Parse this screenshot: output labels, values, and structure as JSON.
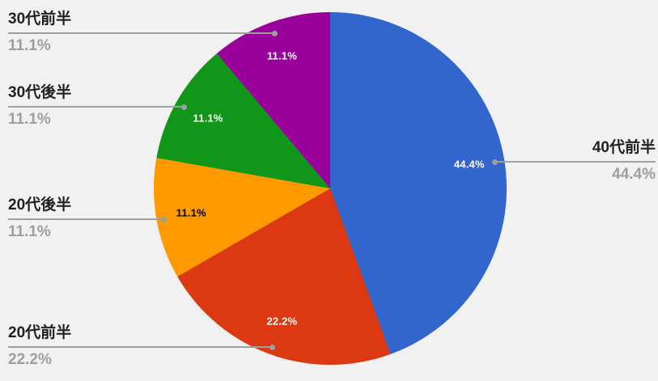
{
  "chart_data": {
    "type": "pie",
    "title": "",
    "direction": "clockwise",
    "start_angle_deg": 0,
    "background_color": "#f1f1f2",
    "callout_name_color": "#212121",
    "callout_pct_color": "#9e9e9e",
    "leader_line_color": "#9e9e9e",
    "slices": [
      {
        "label": "40代前半",
        "value": 44.4,
        "pct_label": "44.4%",
        "color": "#3366cc",
        "pct_text_color": "#ffffff"
      },
      {
        "label": "20代前半",
        "value": 22.2,
        "pct_label": "22.2%",
        "color": "#dc3912",
        "pct_text_color": "#ffffff"
      },
      {
        "label": "20代後半",
        "value": 11.1,
        "pct_label": "11.1%",
        "color": "#ff9900",
        "pct_text_color": "#000000"
      },
      {
        "label": "30代後半",
        "value": 11.1,
        "pct_label": "11.1%",
        "color": "#109618",
        "pct_text_color": "#ffffff"
      },
      {
        "label": "30代前半",
        "value": 11.1,
        "pct_label": "11.1%",
        "color": "#990099",
        "pct_text_color": "#ffffff"
      }
    ]
  }
}
